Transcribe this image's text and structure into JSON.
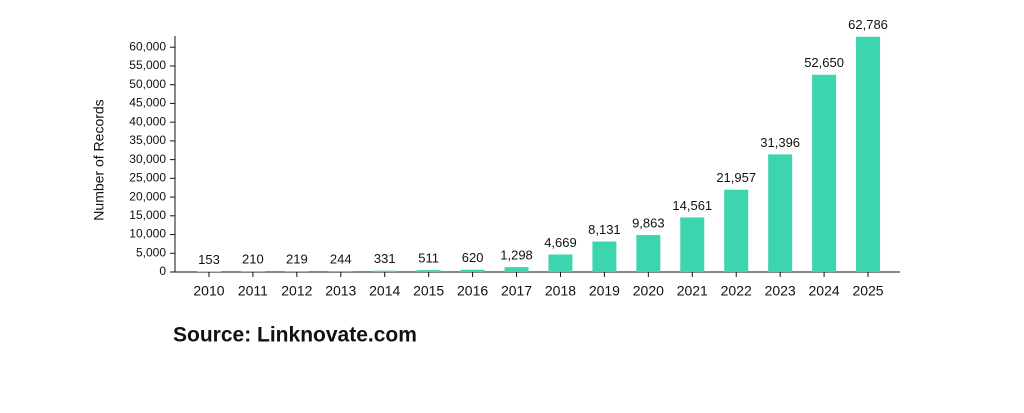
{
  "chart_data": {
    "type": "bar",
    "y_label": "Number of Records",
    "source": "Source: Linknovate.com",
    "categories": [
      "2010",
      "2011",
      "2012",
      "2013",
      "2014",
      "2015",
      "2016",
      "2017",
      "2018",
      "2019",
      "2020",
      "2021",
      "2022",
      "2023",
      "2024",
      "2025"
    ],
    "values": [
      153,
      210,
      219,
      244,
      331,
      511,
      620,
      1298,
      4669,
      8131,
      9863,
      14561,
      21957,
      31396,
      52650,
      62786
    ],
    "value_labels": [
      "153",
      "210",
      "219",
      "244",
      "331",
      "511",
      "620",
      "1,298",
      "4,669",
      "8,131",
      "9,863",
      "14,561",
      "21,957",
      "31,396",
      "52,650",
      "62,786"
    ],
    "color": "#3dd4b0",
    "ylim": [
      0,
      63000
    ],
    "yticks": [
      0,
      {
        "value": 5000,
        "label": "5,000"
      },
      {
        "value": 10000,
        "label": "10,000"
      },
      {
        "value": 15000,
        "label": "15,000"
      },
      {
        "value": 20000,
        "label": "20,000"
      },
      {
        "value": 25000,
        "label": "25,000"
      },
      {
        "value": 30000,
        "label": "30,000"
      },
      {
        "value": 35000,
        "label": "35,000"
      },
      {
        "value": 40000,
        "label": "40,000"
      },
      {
        "value": 45000,
        "label": "45,000"
      },
      {
        "value": 50000,
        "label": "50,000"
      },
      {
        "value": 55000,
        "label": "55,000"
      },
      {
        "value": 60000,
        "label": "60,000"
      }
    ],
    "grid": false
  }
}
